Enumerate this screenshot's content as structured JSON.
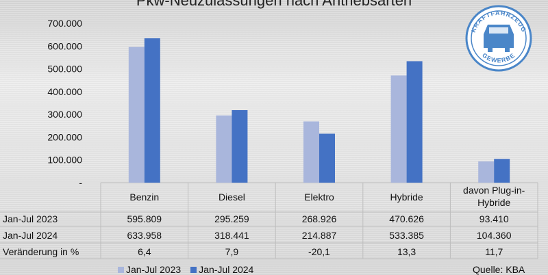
{
  "chart_data": {
    "type": "bar",
    "title": "Pkw-Neuzulassungen nach Antriebsarten",
    "categories": [
      "Benzin",
      "Diesel",
      "Elektro",
      "Hybride",
      "davon Plug-in-Hybride"
    ],
    "category_lines": [
      [
        "Benzin"
      ],
      [
        "Diesel"
      ],
      [
        "Elektro"
      ],
      [
        "Hybride"
      ],
      [
        "davon Plug-in-",
        "Hybride"
      ]
    ],
    "series": [
      {
        "name": "Jan-Jul 2023",
        "color": "#a9b6dc",
        "values": [
          595809,
          295259,
          268926,
          470626,
          93410
        ],
        "labels": [
          "595.809",
          "295.259",
          "268.926",
          "470.626",
          "93.410"
        ]
      },
      {
        "name": "Jan-Jul 2024",
        "color": "#4472c4",
        "values": [
          633958,
          318441,
          214887,
          533385,
          104360
        ],
        "labels": [
          "633.958",
          "318.441",
          "214.887",
          "533.385",
          "104.360"
        ]
      }
    ],
    "change_row": {
      "label": "Veränderung in %",
      "values": [
        "6,4",
        "7,9",
        "-20,1",
        "13,3",
        "11,7"
      ]
    },
    "yticks": [
      "-",
      "100.000",
      "200.000",
      "300.000",
      "400.000",
      "500.000",
      "600.000",
      "700.000"
    ],
    "ylim": [
      0,
      700000
    ],
    "grid": false,
    "legend": "bottom",
    "source": "Quelle: KBA"
  },
  "logo": {
    "text_top": "KRAFTFAHRZEUG",
    "text_bottom": "GEWERBE",
    "color": "#4a86c8"
  }
}
